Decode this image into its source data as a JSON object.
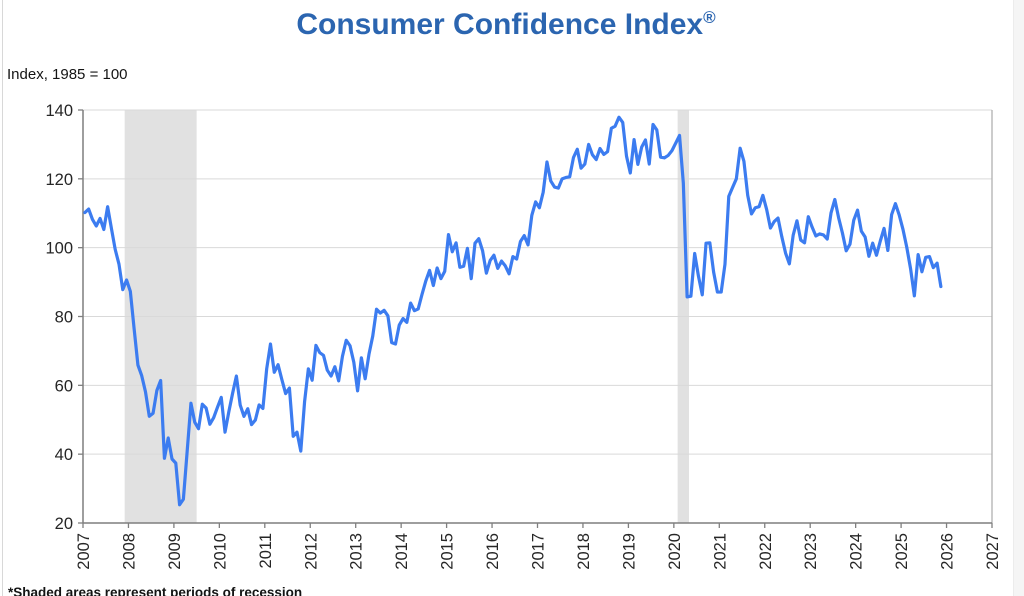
{
  "header": {
    "title": "Consumer Confidence Index",
    "registered_mark": "®",
    "unit_label": "Index, 1985 = 100"
  },
  "footer": {
    "footnote": "*Shaded areas represent periods of recession"
  },
  "chart_data": {
    "type": "line",
    "title": "Consumer Confidence Index®",
    "xlabel": "",
    "ylabel": "Index, 1985 = 100",
    "grid": true,
    "legend_position": "none",
    "line_color": "#3c7cf0",
    "grid_color": "#d9d9d9",
    "axis_color": "#7f7f7f",
    "tick_label_color": "#262626",
    "recession_band_color": "#e1e1e1",
    "x_axis": {
      "min": 2007,
      "max": 2027,
      "ticks": [
        2007,
        2008,
        2009,
        2010,
        2011,
        2012,
        2013,
        2014,
        2015,
        2016,
        2017,
        2018,
        2019,
        2020,
        2021,
        2022,
        2023,
        2024,
        2025,
        2026,
        2027
      ]
    },
    "y_axis": {
      "min": 20,
      "max": 140,
      "ticks": [
        20,
        40,
        60,
        80,
        100,
        120,
        140
      ]
    },
    "recession_bands": [
      {
        "start_year_frac": 2007.917,
        "end_year_frac": 2009.5
      },
      {
        "start_year_frac": 2020.083,
        "end_year_frac": 2020.333
      }
    ],
    "series": [
      {
        "name": "Consumer Confidence Index",
        "frequency": "monthly",
        "start": "2007-01",
        "end": "2025-11",
        "values_by_year": {
          "2007": [
            110.2,
            111.2,
            108.2,
            106.3,
            108.5,
            105.3,
            111.9,
            105.6,
            99.5,
            95.2,
            87.8,
            90.6
          ],
          "2008": [
            87.3,
            76.4,
            65.9,
            62.8,
            58.1,
            51.0,
            51.9,
            58.5,
            61.4,
            38.8,
            44.7,
            38.6
          ],
          "2009": [
            37.4,
            25.3,
            26.9,
            40.8,
            54.8,
            49.3,
            47.4,
            54.5,
            53.4,
            48.7,
            50.6,
            53.6
          ],
          "2010": [
            56.5,
            46.4,
            52.3,
            57.7,
            62.7,
            54.3,
            51.0,
            53.2,
            48.6,
            49.9,
            54.3,
            53.3
          ],
          "2011": [
            64.8,
            72.0,
            63.8,
            66.0,
            61.7,
            57.6,
            59.2,
            45.2,
            46.4,
            40.9,
            55.2,
            64.8
          ],
          "2012": [
            61.5,
            71.6,
            69.5,
            68.7,
            64.4,
            62.7,
            65.4,
            61.3,
            68.4,
            73.1,
            71.5,
            66.7
          ],
          "2013": [
            58.4,
            68.0,
            61.9,
            69.0,
            74.3,
            82.1,
            81.0,
            81.8,
            80.2,
            72.4,
            72.0,
            77.5
          ],
          "2014": [
            79.4,
            78.3,
            83.9,
            81.7,
            82.2,
            86.4,
            90.3,
            93.4,
            89.0,
            94.1,
            91.0,
            93.1
          ],
          "2015": [
            103.8,
            98.8,
            101.4,
            94.3,
            94.6,
            99.8,
            91.0,
            101.3,
            102.6,
            99.1,
            92.6,
            96.3
          ],
          "2016": [
            97.8,
            94.0,
            96.1,
            94.7,
            92.4,
            97.4,
            96.7,
            101.8,
            103.5,
            100.8,
            109.4,
            113.3
          ],
          "2017": [
            111.6,
            116.1,
            124.9,
            119.4,
            117.6,
            117.3,
            120.0,
            120.4,
            120.6,
            126.2,
            128.6,
            123.1
          ],
          "2018": [
            124.3,
            130.0,
            127.0,
            125.6,
            128.8,
            127.1,
            127.9,
            134.7,
            135.3,
            137.9,
            136.4,
            126.6
          ],
          "2019": [
            121.7,
            131.4,
            124.2,
            129.2,
            131.3,
            124.3,
            135.8,
            134.2,
            126.3,
            126.1,
            126.8,
            128.2
          ],
          "2020": [
            130.4,
            132.6,
            118.8,
            85.7,
            85.9,
            98.3,
            91.7,
            86.3,
            101.3,
            101.4,
            92.9,
            87.1
          ],
          "2021": [
            87.1,
            95.2,
            114.9,
            117.5,
            120.0,
            128.9,
            125.1,
            115.2,
            109.8,
            111.6,
            111.9,
            115.2
          ],
          "2022": [
            111.1,
            105.7,
            107.6,
            108.6,
            103.2,
            98.4,
            95.3,
            103.6,
            107.8,
            102.2,
            101.4,
            109.0
          ],
          "2023": [
            106.0,
            103.4,
            104.0,
            103.7,
            102.5,
            110.1,
            114.0,
            108.7,
            104.3,
            99.1,
            101.0,
            108.0
          ],
          "2024": [
            110.9,
            104.8,
            103.1,
            97.5,
            101.3,
            97.8,
            101.9,
            105.6,
            99.2,
            109.6,
            112.8,
            109.5
          ],
          "2025": [
            105.3,
            100.1,
            93.9,
            86.0,
            98.0,
            93.0,
            97.2,
            97.4,
            94.2,
            95.5,
            88.7
          ]
        }
      }
    ]
  }
}
